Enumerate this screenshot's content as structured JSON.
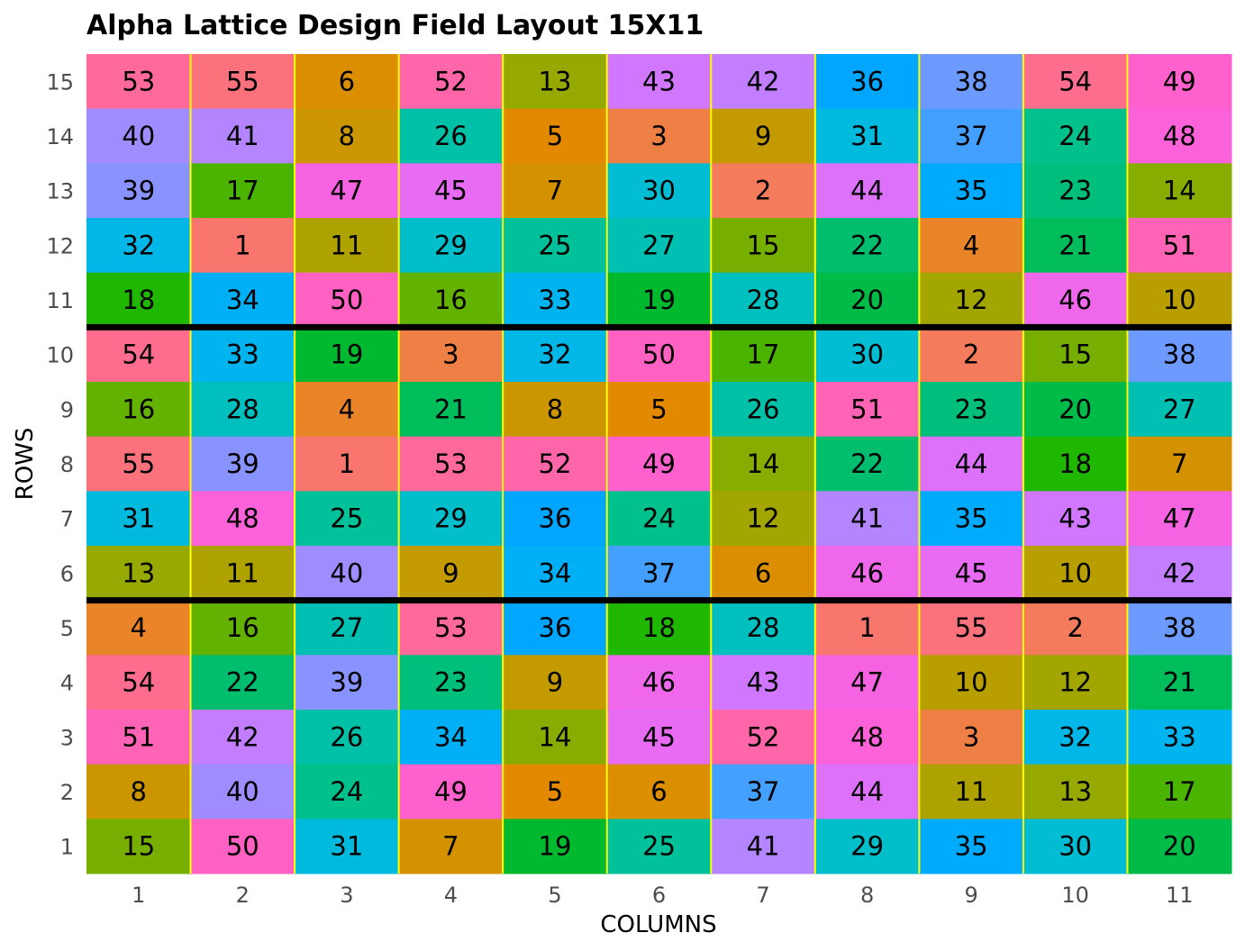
{
  "chart_data": {
    "type": "heatmap",
    "title": "Alpha Lattice Design Field Layout 15X11",
    "xlabel": "COLUMNS",
    "ylabel": "ROWS",
    "columns": [
      1,
      2,
      3,
      4,
      5,
      6,
      7,
      8,
      9,
      10,
      11
    ],
    "rows": [
      1,
      2,
      3,
      4,
      5,
      6,
      7,
      8,
      9,
      10,
      11,
      12,
      13,
      14,
      15
    ],
    "block_boundaries_after_rows": [
      5,
      10
    ],
    "grid_rows_top_to_bottom": [
      {
        "row": 15,
        "values": [
          53,
          55,
          6,
          52,
          13,
          43,
          42,
          36,
          38,
          54,
          49
        ]
      },
      {
        "row": 14,
        "values": [
          40,
          41,
          8,
          26,
          5,
          3,
          9,
          31,
          37,
          24,
          48
        ]
      },
      {
        "row": 13,
        "values": [
          39,
          17,
          47,
          45,
          7,
          30,
          2,
          44,
          35,
          23,
          14
        ]
      },
      {
        "row": 12,
        "values": [
          32,
          1,
          11,
          29,
          25,
          27,
          15,
          22,
          4,
          21,
          51
        ]
      },
      {
        "row": 11,
        "values": [
          18,
          34,
          50,
          16,
          33,
          19,
          28,
          20,
          12,
          46,
          10
        ]
      },
      {
        "row": 10,
        "values": [
          54,
          33,
          19,
          3,
          32,
          50,
          17,
          30,
          2,
          15,
          38
        ]
      },
      {
        "row": 9,
        "values": [
          16,
          28,
          4,
          21,
          8,
          5,
          26,
          51,
          23,
          20,
          27
        ]
      },
      {
        "row": 8,
        "values": [
          55,
          39,
          1,
          53,
          52,
          49,
          14,
          22,
          44,
          18,
          7
        ]
      },
      {
        "row": 7,
        "values": [
          31,
          48,
          25,
          29,
          36,
          24,
          12,
          41,
          35,
          43,
          47
        ]
      },
      {
        "row": 6,
        "values": [
          13,
          11,
          40,
          9,
          34,
          37,
          6,
          46,
          45,
          10,
          42
        ]
      },
      {
        "row": 5,
        "values": [
          4,
          16,
          27,
          53,
          36,
          18,
          28,
          1,
          55,
          2,
          38
        ]
      },
      {
        "row": 4,
        "values": [
          54,
          22,
          39,
          23,
          9,
          46,
          43,
          47,
          10,
          12,
          21
        ]
      },
      {
        "row": 3,
        "values": [
          51,
          42,
          26,
          34,
          14,
          45,
          52,
          48,
          3,
          32,
          33
        ]
      },
      {
        "row": 2,
        "values": [
          8,
          40,
          24,
          49,
          5,
          6,
          37,
          44,
          11,
          13,
          17
        ]
      },
      {
        "row": 1,
        "values": [
          15,
          50,
          31,
          7,
          19,
          25,
          41,
          29,
          35,
          30,
          20
        ]
      }
    ],
    "column_separator_color": "#ffff00",
    "block_separator_color": "#000000",
    "legend": "none",
    "grid": false
  }
}
